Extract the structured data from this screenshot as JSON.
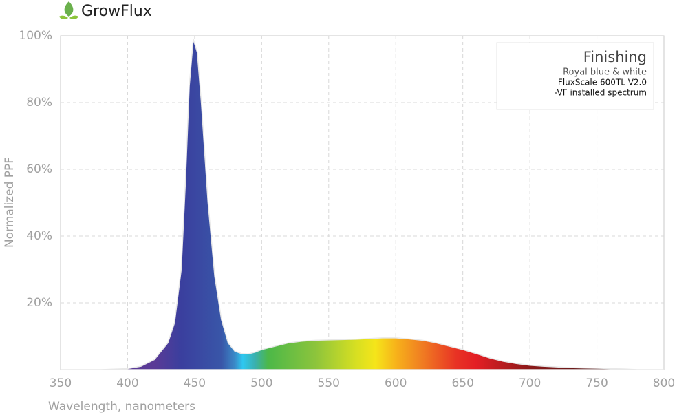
{
  "brand": "GrowFlux",
  "chart_data": {
    "type": "area",
    "ylabel": "Normalized PPF",
    "xlabel": "Wavelength, nanometers",
    "annotation": {
      "title": "Finishing",
      "lines": [
        "Royal blue & white",
        "FluxScale 600TL V2.0",
        "-VF installed spectrum"
      ]
    },
    "x": [
      350,
      380,
      400,
      410,
      420,
      430,
      435,
      440,
      443,
      446,
      449,
      452,
      455,
      460,
      465,
      470,
      475,
      480,
      485,
      490,
      495,
      500,
      510,
      520,
      530,
      540,
      550,
      560,
      570,
      580,
      590,
      600,
      610,
      620,
      630,
      640,
      650,
      660,
      670,
      680,
      690,
      700,
      710,
      720,
      730,
      740,
      750,
      760,
      770,
      780,
      800
    ],
    "values": [
      0,
      0,
      0.3,
      1,
      3,
      8,
      14,
      30,
      55,
      85,
      99,
      95,
      80,
      50,
      28,
      15,
      8,
      5.5,
      4.8,
      4.7,
      5.2,
      6,
      7,
      8,
      8.5,
      8.8,
      8.9,
      9,
      9.1,
      9.3,
      9.5,
      9.5,
      9.2,
      8.8,
      8,
      7,
      6,
      4.8,
      3.5,
      2.5,
      1.8,
      1.3,
      1,
      0.8,
      0.6,
      0.5,
      0.4,
      0.3,
      0.2,
      0,
      0
    ],
    "xlim": [
      350,
      800
    ],
    "xticks": [
      350,
      400,
      450,
      500,
      550,
      600,
      650,
      700,
      750,
      800
    ],
    "ylim": [
      0,
      100
    ],
    "yticks": [
      {
        "value": 20,
        "label": "20%"
      },
      {
        "value": 40,
        "label": "40%"
      },
      {
        "value": 60,
        "label": "60%"
      },
      {
        "value": 80,
        "label": "80%"
      },
      {
        "value": 100,
        "label": "100%"
      }
    ],
    "grid": true
  }
}
